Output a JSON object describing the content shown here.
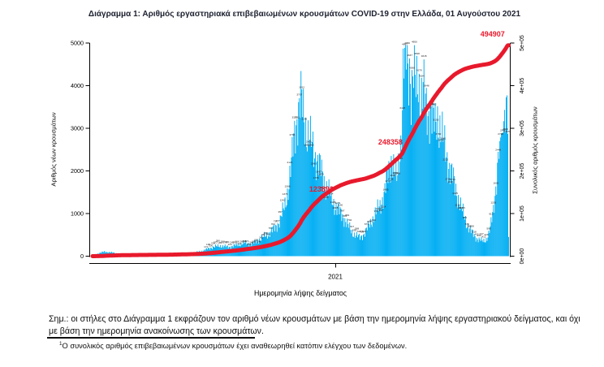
{
  "figure": {
    "title": "Διάγραμμα 1: Αριθμός εργαστηριακά επιβεβαιωμένων κρουσμάτων COVID-19 στην Ελλάδα, 01 Αυγούστου 2021"
  },
  "chart_data": {
    "type": "bar",
    "overlay_line": "cumulative total (right axis)",
    "xlabel": "Ημερομηνία λήψης δείγματος",
    "x_tick_labels": [
      "2021"
    ],
    "ylabel_left": "Αριθμός νέων κρουσμάτων",
    "ylabel_right": "Συνολικός αριθμός κρουσμάτων",
    "y_left_tick_labels": [
      "0",
      "1000",
      "2000",
      "3000",
      "4000",
      "5000"
    ],
    "y_right_tick_labels": [
      "0e+00",
      "1e+05",
      "2e+05",
      "3e+05",
      "4e+05",
      "5e+05"
    ],
    "ylim_left": [
      0,
      5000
    ],
    "ylim_right": [
      0,
      500000
    ],
    "grid": false,
    "n_days": 522,
    "daily_new_cases_keypoints": [
      [
        0,
        8
      ],
      [
        8,
        70
      ],
      [
        15,
        105
      ],
      [
        22,
        90
      ],
      [
        30,
        68
      ],
      [
        40,
        40
      ],
      [
        52,
        25
      ],
      [
        65,
        18
      ],
      [
        80,
        22
      ],
      [
        95,
        35
      ],
      [
        110,
        50
      ],
      [
        125,
        65
      ],
      [
        140,
        140
      ],
      [
        150,
        210
      ],
      [
        160,
        245
      ],
      [
        170,
        215
      ],
      [
        180,
        255
      ],
      [
        190,
        310
      ],
      [
        200,
        290
      ],
      [
        210,
        400
      ],
      [
        220,
        520
      ],
      [
        228,
        650
      ],
      [
        235,
        850
      ],
      [
        241,
        1200
      ],
      [
        246,
        1700
      ],
      [
        250,
        2300
      ],
      [
        253,
        2900
      ],
      [
        256,
        3250
      ],
      [
        259,
        3500
      ],
      [
        261,
        3620
      ],
      [
        263,
        3480
      ],
      [
        266,
        3150
      ],
      [
        269,
        2900
      ],
      [
        272,
        2720
      ],
      [
        276,
        2520
      ],
      [
        280,
        2320
      ],
      [
        285,
        2060
      ],
      [
        290,
        1780
      ],
      [
        295,
        1520
      ],
      [
        300,
        1320
      ],
      [
        305,
        1160
      ],
      [
        310,
        1010
      ],
      [
        315,
        900
      ],
      [
        320,
        710
      ],
      [
        325,
        560
      ],
      [
        330,
        490
      ],
      [
        335,
        430
      ],
      [
        340,
        530
      ],
      [
        345,
        670
      ],
      [
        350,
        850
      ],
      [
        355,
        1010
      ],
      [
        360,
        1190
      ],
      [
        365,
        1460
      ],
      [
        369,
        1780
      ],
      [
        372,
        2080
      ],
      [
        375,
        2350
      ],
      [
        378,
        2000
      ],
      [
        381,
        1750
      ],
      [
        384,
        2250
      ],
      [
        386,
        2700
      ],
      [
        388,
        3600
      ],
      [
        389,
        4870
      ],
      [
        391,
        4400
      ],
      [
        393,
        4700
      ],
      [
        395,
        4200
      ],
      [
        397,
        4550
      ],
      [
        399,
        3950
      ],
      [
        402,
        4300
      ],
      [
        405,
        3850
      ],
      [
        408,
        4150
      ],
      [
        411,
        3700
      ],
      [
        414,
        3950
      ],
      [
        417,
        3500
      ],
      [
        420,
        3300
      ],
      [
        423,
        3550
      ],
      [
        426,
        3200
      ],
      [
        429,
        3000
      ],
      [
        432,
        3250
      ],
      [
        435,
        3050
      ],
      [
        438,
        2800
      ],
      [
        441,
        2550
      ],
      [
        444,
        2300
      ],
      [
        447,
        2100
      ],
      [
        450,
        1900
      ],
      [
        453,
        1700
      ],
      [
        456,
        1500
      ],
      [
        459,
        1300
      ],
      [
        462,
        1100
      ],
      [
        465,
        950
      ],
      [
        468,
        800
      ],
      [
        471,
        680
      ],
      [
        474,
        580
      ],
      [
        477,
        500
      ],
      [
        480,
        440
      ],
      [
        483,
        400
      ],
      [
        486,
        370
      ],
      [
        489,
        350
      ],
      [
        492,
        380
      ],
      [
        494,
        430
      ],
      [
        496,
        520
      ],
      [
        498,
        650
      ],
      [
        500,
        850
      ],
      [
        502,
        1100
      ],
      [
        504,
        1450
      ],
      [
        506,
        1850
      ],
      [
        508,
        2300
      ],
      [
        510,
        2700
      ],
      [
        512,
        2870
      ],
      [
        514,
        2900
      ],
      [
        516,
        3433
      ],
      [
        517,
        2900
      ],
      [
        518,
        3727
      ],
      [
        519,
        3772
      ],
      [
        520,
        2870
      ],
      [
        521,
        450
      ]
    ],
    "cumulative_final": 494907,
    "annotations": [
      {
        "label": "123892",
        "fx": 0.552,
        "fy": 0.694
      },
      {
        "label": "248358",
        "fx": 0.716,
        "fy": 0.478
      },
      {
        "label": "494907",
        "fx": 0.959,
        "fy": -0.019
      }
    ],
    "bar_color": "#00AEF3",
    "line_color": "#E8192C"
  },
  "notes": {
    "line1": "Σημ.:  οι στήλες στο Διάγραμμα 1 εκφράζουν τον αριθμό νέων κρουσμάτων με βάση την ημερομηνία λήψης εργαστηριακού δείγματος, και όχι",
    "line2": "με βάση την ημερομηνία ανακοίνωσης των κρουσμάτων."
  },
  "footnote": {
    "marker": "1",
    "text": "Ο συνολικός αριθμός επιβεβαιωμένων κρουσμάτων έχει αναθεωρηθεί κατόπιν ελέγχου των δεδομένων."
  }
}
